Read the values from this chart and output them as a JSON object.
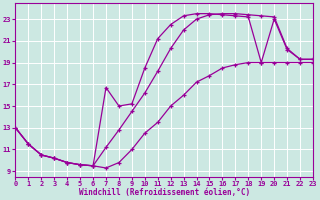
{
  "bg_color": "#cce8e2",
  "grid_color": "#aad4cc",
  "line_color": "#990099",
  "xlim": [
    0,
    23
  ],
  "ylim": [
    8.5,
    24.5
  ],
  "xticks": [
    0,
    1,
    2,
    3,
    4,
    5,
    6,
    7,
    8,
    9,
    10,
    11,
    12,
    13,
    14,
    15,
    16,
    17,
    18,
    19,
    20,
    21,
    22,
    23
  ],
  "yticks": [
    9,
    11,
    13,
    15,
    17,
    19,
    21,
    23
  ],
  "xlabel": "Windchill (Refroidissement éolien,°C)",
  "curve1_x": [
    0,
    1,
    2,
    3,
    4,
    5,
    6,
    7,
    8,
    9,
    10,
    11,
    12,
    13,
    14,
    15,
    16,
    17,
    18,
    19,
    20,
    21,
    22,
    23
  ],
  "curve1_y": [
    13.0,
    11.5,
    10.5,
    10.2,
    9.8,
    9.6,
    9.5,
    11.2,
    12.8,
    14.5,
    16.2,
    18.2,
    20.3,
    22.0,
    23.0,
    23.4,
    23.5,
    23.5,
    23.4,
    23.3,
    23.2,
    20.3,
    19.3,
    19.3
  ],
  "curve2_x": [
    0,
    1,
    2,
    3,
    4,
    5,
    6,
    7,
    8,
    9,
    10,
    11,
    12,
    13,
    14,
    15,
    16,
    17,
    18,
    19,
    20,
    21,
    22,
    23
  ],
  "curve2_y": [
    13.0,
    11.5,
    10.5,
    10.2,
    9.8,
    9.6,
    9.5,
    16.7,
    15.0,
    15.2,
    18.5,
    21.2,
    22.5,
    23.3,
    23.5,
    23.5,
    23.4,
    23.3,
    23.2,
    19.0,
    23.0,
    20.2,
    19.3,
    19.3
  ],
  "curve3_x": [
    0,
    1,
    2,
    3,
    4,
    5,
    6,
    7,
    8,
    9,
    10,
    11,
    12,
    13,
    14,
    15,
    16,
    17,
    18,
    19,
    20,
    21,
    22,
    23
  ],
  "curve3_y": [
    13.0,
    11.5,
    10.5,
    10.2,
    9.8,
    9.6,
    9.5,
    9.3,
    9.8,
    11.0,
    12.5,
    13.5,
    15.0,
    16.0,
    17.2,
    17.8,
    18.5,
    18.8,
    19.0,
    19.0,
    19.0,
    19.0,
    19.0,
    19.0
  ]
}
